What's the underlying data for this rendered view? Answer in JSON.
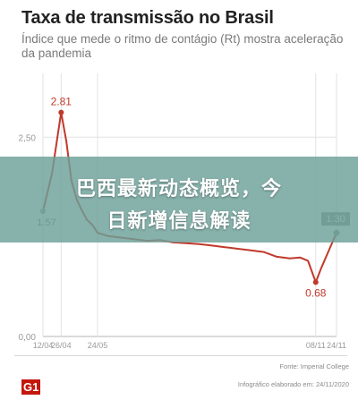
{
  "chart_data": {
    "type": "line",
    "title": "Taxa de transmissão no Brasil",
    "subtitle": "Índice que mede o ritmo de contágio (Rt) mostra aceleração da pandemia",
    "x_labels": [
      "12/04",
      "26/04",
      "24/05",
      "08/11",
      "24/11"
    ],
    "x_label_days": [
      0,
      14,
      42,
      210,
      226
    ],
    "y_ticks": [
      0.0,
      2.5
    ],
    "y_tick_labels": [
      "0,00",
      "2,50"
    ],
    "ylim": [
      0,
      3.3
    ],
    "grid": true,
    "series": [
      {
        "x_days": [
          0,
          7,
          14,
          18,
          22,
          26,
          30,
          34,
          38,
          42,
          50,
          60,
          70,
          80,
          90,
          100,
          110,
          120,
          130,
          140,
          150,
          160,
          170,
          180,
          190,
          198,
          204,
          210,
          214,
          218,
          222,
          226
        ],
        "y": [
          1.57,
          2.05,
          2.81,
          2.45,
          1.95,
          1.72,
          1.58,
          1.46,
          1.4,
          1.3,
          1.26,
          1.24,
          1.22,
          1.2,
          1.21,
          1.18,
          1.17,
          1.16,
          1.14,
          1.12,
          1.1,
          1.08,
          1.06,
          1.0,
          0.98,
          0.99,
          0.95,
          0.68,
          0.85,
          1.0,
          1.15,
          1.3
        ]
      }
    ],
    "annotations": [
      {
        "day": 0,
        "value": 1.57,
        "label": "1.57",
        "style": "plain"
      },
      {
        "day": 14,
        "value": 2.81,
        "label": "2.81",
        "style": "red-text"
      },
      {
        "day": 210,
        "value": 0.68,
        "label": "0.68",
        "style": "red-text"
      },
      {
        "day": 226,
        "value": 1.3,
        "label": "1.30",
        "style": "grey-box"
      }
    ],
    "colors": {
      "line": "#c0392b",
      "grid": "#e2e2e2",
      "axis": "#b5b5b5",
      "tick_text": "#9a9a9a"
    }
  },
  "overlay": {
    "line1": "巴西最新动态概览，今",
    "line2": "日新增信息解读"
  },
  "footer": {
    "source": "Fonte: Imperial College",
    "credit": "Infográfico elaborado em: 24/11/2020",
    "logo": "G1"
  }
}
